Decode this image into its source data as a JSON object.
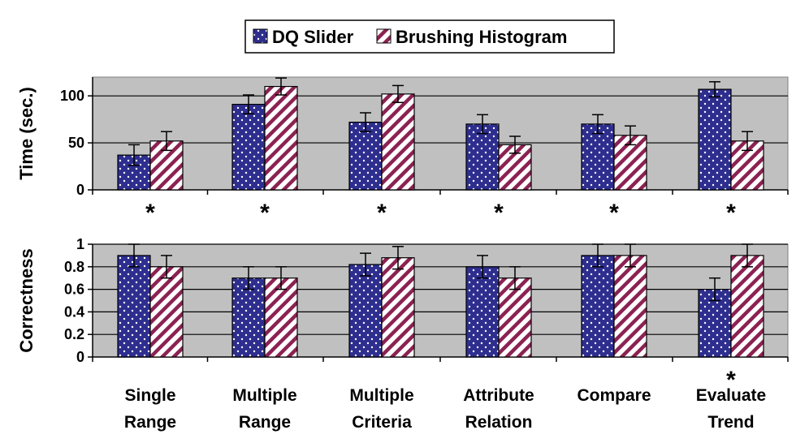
{
  "chart_data": {
    "type": "bar",
    "legend": {
      "placement": "top",
      "entries": [
        "DQ Slider",
        "Brushing Histogram"
      ]
    },
    "series_colors": {
      "DQ Slider": "#2e2e8f",
      "Brushing Histogram": "#8b2252"
    },
    "plot_background": "#c0c0c0",
    "categories": [
      [
        "Single",
        "Range"
      ],
      [
        "Multiple",
        "Range"
      ],
      [
        "Multiple",
        "Criteria"
      ],
      [
        "Attribute",
        "Relation"
      ],
      [
        "Compare"
      ],
      [
        "Evaluate",
        "Trend"
      ]
    ],
    "panels": [
      {
        "ylabel": "Time (sec.)",
        "ylim": [
          0,
          120
        ],
        "yticks": [
          0,
          50,
          100
        ],
        "ytick_labels": [
          "0",
          "50",
          "100"
        ],
        "gridlines": [
          50,
          100
        ],
        "series": [
          {
            "name": "DQ Slider",
            "values": [
              37,
              91,
              72,
              70,
              70,
              107
            ],
            "errors": [
              11,
              10,
              10,
              10,
              10,
              8
            ]
          },
          {
            "name": "Brushing Histogram",
            "values": [
              52,
              110,
              102,
              48,
              58,
              52
            ],
            "errors": [
              10,
              9,
              9,
              9,
              10,
              10
            ]
          }
        ],
        "significant": [
          "*",
          "*",
          "*",
          "*",
          "*",
          "*"
        ]
      },
      {
        "ylabel": "Correctness",
        "ylim": [
          0,
          1
        ],
        "yticks": [
          0,
          0.2,
          0.4,
          0.6,
          0.8,
          1
        ],
        "ytick_labels": [
          "0",
          "0.2",
          "0.4",
          "0.6",
          "0.8",
          "1"
        ],
        "gridlines": [
          0.2,
          0.4,
          0.6,
          0.8,
          1
        ],
        "series": [
          {
            "name": "DQ Slider",
            "values": [
              0.9,
              0.7,
              0.82,
              0.8,
              0.9,
              0.6
            ],
            "errors": [
              0.1,
              0.1,
              0.1,
              0.1,
              0.1,
              0.1
            ]
          },
          {
            "name": "Brushing Histogram",
            "values": [
              0.8,
              0.7,
              0.88,
              0.7,
              0.9,
              0.9
            ],
            "errors": [
              0.1,
              0.1,
              0.1,
              0.1,
              0.1,
              0.1
            ]
          }
        ],
        "significant": [
          "",
          "",
          "",
          "",
          "",
          "*"
        ]
      }
    ]
  }
}
